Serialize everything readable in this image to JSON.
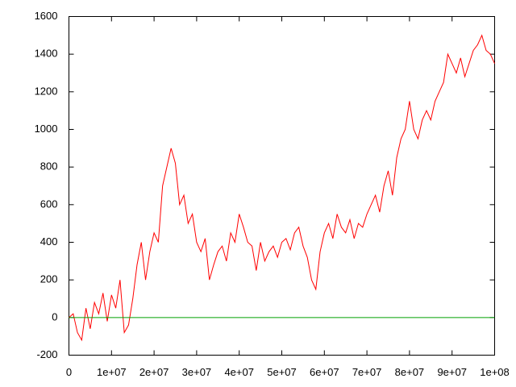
{
  "chart_data": {
    "type": "line",
    "series": [
      {
        "color": "#ff0000",
        "x": [
          0,
          1000000,
          2000000,
          3000000,
          4000000,
          5000000,
          6000000,
          7000000,
          8000000,
          9000000,
          10000000,
          11000000,
          12000000,
          13000000,
          14000000,
          15000000,
          16000000,
          17000000,
          18000000,
          19000000,
          20000000,
          21000000,
          22000000,
          23000000,
          24000000,
          25000000,
          26000000,
          27000000,
          28000000,
          29000000,
          30000000,
          31000000,
          32000000,
          33000000,
          34000000,
          35000000,
          36000000,
          37000000,
          38000000,
          39000000,
          40000000,
          41000000,
          42000000,
          43000000,
          44000000,
          45000000,
          46000000,
          47000000,
          48000000,
          49000000,
          50000000,
          51000000,
          52000000,
          53000000,
          54000000,
          55000000,
          56000000,
          57000000,
          58000000,
          59000000,
          60000000,
          61000000,
          62000000,
          63000000,
          64000000,
          65000000,
          66000000,
          67000000,
          68000000,
          69000000,
          70000000,
          71000000,
          72000000,
          73000000,
          74000000,
          75000000,
          76000000,
          77000000,
          78000000,
          79000000,
          80000000,
          81000000,
          82000000,
          83000000,
          84000000,
          85000000,
          86000000,
          87000000,
          88000000,
          89000000,
          90000000,
          91000000,
          92000000,
          93000000,
          94000000,
          95000000,
          96000000,
          97000000,
          98000000,
          99000000,
          100000000
        ],
        "values": [
          0,
          20,
          -80,
          -120,
          50,
          -60,
          80,
          20,
          130,
          -20,
          120,
          50,
          200,
          -80,
          -40,
          100,
          280,
          400,
          200,
          350,
          450,
          400,
          700,
          800,
          900,
          820,
          600,
          650,
          500,
          550,
          400,
          350,
          420,
          200,
          280,
          350,
          380,
          300,
          450,
          400,
          550,
          480,
          400,
          380,
          250,
          400,
          300,
          350,
          380,
          320,
          400,
          420,
          360,
          450,
          480,
          380,
          320,
          200,
          150,
          350,
          450,
          500,
          420,
          550,
          480,
          450,
          520,
          420,
          500,
          480,
          550,
          600,
          650,
          560,
          700,
          780,
          650,
          850,
          950,
          1000,
          1150,
          1000,
          950,
          1050,
          1100,
          1050,
          1150,
          1200,
          1250,
          1400,
          1350,
          1300,
          1380,
          1280,
          1350,
          1420,
          1450,
          1500,
          1420,
          1400,
          1350
        ]
      },
      {
        "color": "#00a000",
        "x": [
          0,
          100000000
        ],
        "values": [
          0,
          0
        ]
      }
    ],
    "xlim": [
      0,
      100000000
    ],
    "xticks": [
      0,
      {
        "value": 10000000,
        "label": "1e+07"
      },
      {
        "value": 20000000,
        "label": "2e+07"
      },
      {
        "value": 30000000,
        "label": "3e+07"
      },
      {
        "value": 40000000,
        "label": "4e+07"
      },
      {
        "value": 50000000,
        "label": "5e+07"
      },
      {
        "value": 60000000,
        "label": "6e+07"
      },
      {
        "value": 70000000,
        "label": "7e+07"
      },
      {
        "value": 80000000,
        "label": "8e+07"
      },
      {
        "value": 90000000,
        "label": "9e+07"
      },
      {
        "value": 100000000,
        "label": "1e+08"
      }
    ],
    "ylim": [
      -200,
      1600
    ],
    "yticks": [
      -200,
      0,
      200,
      400,
      600,
      800,
      1000,
      1200,
      1400,
      1600
    ],
    "grid": false
  }
}
